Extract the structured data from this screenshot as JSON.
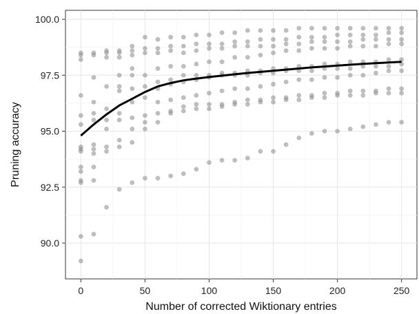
{
  "chart_data": {
    "type": "scatter",
    "title": "",
    "xlabel": "Number of corrected Wiktionary entries",
    "ylabel": "Pruning accuracy",
    "xlim": [
      -12,
      262
    ],
    "ylim": [
      88.4,
      100.4
    ],
    "x_ticks": [
      0,
      50,
      100,
      150,
      200,
      250
    ],
    "x_tick_labels": [
      "0",
      "50",
      "100",
      "150",
      "200",
      "250"
    ],
    "y_ticks": [
      90.0,
      92.5,
      95.0,
      97.5,
      100.0
    ],
    "y_tick_labels": [
      "90.0",
      "92.5",
      "95.0",
      "97.5",
      "100.0"
    ],
    "grid": true,
    "legend": "none",
    "point_color": "#888888",
    "point_opacity": 0.55,
    "line_color": "#000000",
    "series": [
      {
        "kind": "scatter",
        "points": [
          [
            0,
            98.5
          ],
          [
            0,
            98.4
          ],
          [
            0,
            98.2
          ],
          [
            0,
            96.6
          ],
          [
            0,
            95.7
          ],
          [
            0,
            95.3
          ],
          [
            0,
            94.3
          ],
          [
            0,
            94.2
          ],
          [
            0,
            94.1
          ],
          [
            0,
            93.4
          ],
          [
            0,
            93.2
          ],
          [
            0,
            92.8
          ],
          [
            0,
            92.7
          ],
          [
            0,
            90.3
          ],
          [
            0,
            89.2
          ],
          [
            10,
            98.5
          ],
          [
            10,
            98.4
          ],
          [
            10,
            97.4
          ],
          [
            10,
            96.3
          ],
          [
            10,
            95.8
          ],
          [
            10,
            95.5
          ],
          [
            10,
            94.4
          ],
          [
            10,
            94.2
          ],
          [
            10,
            94.0
          ],
          [
            10,
            93.4
          ],
          [
            10,
            92.8
          ],
          [
            10,
            90.4
          ],
          [
            20,
            98.6
          ],
          [
            20,
            98.5
          ],
          [
            20,
            98.3
          ],
          [
            20,
            97.0
          ],
          [
            20,
            96.0
          ],
          [
            20,
            95.5
          ],
          [
            20,
            95.1
          ],
          [
            20,
            94.3
          ],
          [
            20,
            94.1
          ],
          [
            20,
            91.6
          ],
          [
            30,
            98.6
          ],
          [
            30,
            98.5
          ],
          [
            30,
            98.3
          ],
          [
            30,
            97.5
          ],
          [
            30,
            97.0
          ],
          [
            30,
            96.8
          ],
          [
            30,
            95.8
          ],
          [
            30,
            95.5
          ],
          [
            30,
            94.6
          ],
          [
            30,
            94.3
          ],
          [
            30,
            92.4
          ],
          [
            40,
            98.8
          ],
          [
            40,
            98.6
          ],
          [
            40,
            98.4
          ],
          [
            40,
            97.8
          ],
          [
            40,
            97.5
          ],
          [
            40,
            96.9
          ],
          [
            40,
            96.3
          ],
          [
            40,
            95.6
          ],
          [
            40,
            95.1
          ],
          [
            40,
            94.5
          ],
          [
            40,
            92.7
          ],
          [
            50,
            99.2
          ],
          [
            50,
            98.7
          ],
          [
            50,
            98.5
          ],
          [
            50,
            97.5
          ],
          [
            50,
            97.0
          ],
          [
            50,
            96.5
          ],
          [
            50,
            95.7
          ],
          [
            50,
            95.4
          ],
          [
            50,
            95.1
          ],
          [
            50,
            92.9
          ],
          [
            60,
            99.1
          ],
          [
            60,
            98.7
          ],
          [
            60,
            98.5
          ],
          [
            60,
            97.8
          ],
          [
            60,
            97.2
          ],
          [
            60,
            96.9
          ],
          [
            60,
            96.3
          ],
          [
            60,
            95.8
          ],
          [
            60,
            95.4
          ],
          [
            60,
            92.9
          ],
          [
            70,
            99.2
          ],
          [
            70,
            98.8
          ],
          [
            70,
            98.6
          ],
          [
            70,
            97.9
          ],
          [
            70,
            97.3
          ],
          [
            70,
            97.1
          ],
          [
            70,
            96.4
          ],
          [
            70,
            95.9
          ],
          [
            70,
            95.8
          ],
          [
            70,
            93.0
          ],
          [
            80,
            99.2
          ],
          [
            80,
            98.8
          ],
          [
            80,
            98.5
          ],
          [
            80,
            97.9
          ],
          [
            80,
            97.5
          ],
          [
            80,
            97.2
          ],
          [
            80,
            96.5
          ],
          [
            80,
            96.1
          ],
          [
            80,
            95.9
          ],
          [
            80,
            93.1
          ],
          [
            90,
            99.3
          ],
          [
            90,
            98.9
          ],
          [
            90,
            98.6
          ],
          [
            90,
            98.0
          ],
          [
            90,
            97.5
          ],
          [
            90,
            97.3
          ],
          [
            90,
            96.6
          ],
          [
            90,
            96.2
          ],
          [
            90,
            96.0
          ],
          [
            90,
            93.3
          ],
          [
            100,
            99.3
          ],
          [
            100,
            98.9
          ],
          [
            100,
            98.7
          ],
          [
            100,
            98.1
          ],
          [
            100,
            97.5
          ],
          [
            100,
            97.4
          ],
          [
            100,
            96.7
          ],
          [
            100,
            96.2
          ],
          [
            100,
            96.0
          ],
          [
            100,
            93.6
          ],
          [
            110,
            99.4
          ],
          [
            110,
            98.9
          ],
          [
            110,
            98.7
          ],
          [
            110,
            98.1
          ],
          [
            110,
            97.6
          ],
          [
            110,
            97.5
          ],
          [
            110,
            96.8
          ],
          [
            110,
            96.2
          ],
          [
            110,
            96.1
          ],
          [
            110,
            93.7
          ],
          [
            120,
            99.4
          ],
          [
            120,
            99.0
          ],
          [
            120,
            98.8
          ],
          [
            120,
            98.3
          ],
          [
            120,
            97.6
          ],
          [
            120,
            97.5
          ],
          [
            120,
            96.9
          ],
          [
            120,
            96.3
          ],
          [
            120,
            96.2
          ],
          [
            120,
            93.7
          ],
          [
            130,
            99.5
          ],
          [
            130,
            99.0
          ],
          [
            130,
            98.8
          ],
          [
            130,
            98.3
          ],
          [
            130,
            97.7
          ],
          [
            130,
            97.5
          ],
          [
            130,
            96.9
          ],
          [
            130,
            96.4
          ],
          [
            130,
            96.2
          ],
          [
            130,
            93.8
          ],
          [
            140,
            99.5
          ],
          [
            140,
            99.1
          ],
          [
            140,
            98.8
          ],
          [
            140,
            98.4
          ],
          [
            140,
            97.7
          ],
          [
            140,
            97.6
          ],
          [
            140,
            97.0
          ],
          [
            140,
            96.4
          ],
          [
            140,
            96.3
          ],
          [
            140,
            94.1
          ],
          [
            150,
            99.5
          ],
          [
            150,
            99.1
          ],
          [
            150,
            98.8
          ],
          [
            150,
            98.5
          ],
          [
            150,
            97.8
          ],
          [
            150,
            97.6
          ],
          [
            150,
            97.1
          ],
          [
            150,
            96.5
          ],
          [
            150,
            96.3
          ],
          [
            150,
            94.1
          ],
          [
            160,
            99.5
          ],
          [
            160,
            99.1
          ],
          [
            160,
            98.9
          ],
          [
            160,
            98.6
          ],
          [
            160,
            97.8
          ],
          [
            160,
            97.7
          ],
          [
            160,
            97.2
          ],
          [
            160,
            96.5
          ],
          [
            160,
            96.4
          ],
          [
            160,
            94.4
          ],
          [
            170,
            99.6
          ],
          [
            170,
            99.2
          ],
          [
            170,
            98.9
          ],
          [
            170,
            98.6
          ],
          [
            170,
            97.9
          ],
          [
            170,
            97.7
          ],
          [
            170,
            97.3
          ],
          [
            170,
            96.6
          ],
          [
            170,
            96.4
          ],
          [
            170,
            94.7
          ],
          [
            180,
            99.6
          ],
          [
            180,
            99.2
          ],
          [
            180,
            99.0
          ],
          [
            180,
            98.7
          ],
          [
            180,
            97.9
          ],
          [
            180,
            97.7
          ],
          [
            180,
            97.3
          ],
          [
            180,
            96.6
          ],
          [
            180,
            96.5
          ],
          [
            180,
            94.9
          ],
          [
            190,
            99.6
          ],
          [
            190,
            99.2
          ],
          [
            190,
            99.0
          ],
          [
            190,
            98.7
          ],
          [
            190,
            98.0
          ],
          [
            190,
            97.8
          ],
          [
            190,
            97.4
          ],
          [
            190,
            96.7
          ],
          [
            190,
            96.5
          ],
          [
            190,
            95.0
          ],
          [
            200,
            99.6
          ],
          [
            200,
            99.3
          ],
          [
            200,
            99.0
          ],
          [
            200,
            98.7
          ],
          [
            200,
            98.0
          ],
          [
            200,
            97.8
          ],
          [
            200,
            97.4
          ],
          [
            200,
            96.7
          ],
          [
            200,
            96.6
          ],
          [
            200,
            95.0
          ],
          [
            210,
            99.6
          ],
          [
            210,
            99.3
          ],
          [
            210,
            99.0
          ],
          [
            210,
            98.8
          ],
          [
            210,
            98.1
          ],
          [
            210,
            97.8
          ],
          [
            210,
            97.5
          ],
          [
            210,
            96.8
          ],
          [
            210,
            96.6
          ],
          [
            210,
            95.1
          ],
          [
            220,
            99.6
          ],
          [
            220,
            99.3
          ],
          [
            220,
            99.1
          ],
          [
            220,
            98.8
          ],
          [
            220,
            98.1
          ],
          [
            220,
            97.9
          ],
          [
            220,
            97.5
          ],
          [
            220,
            96.8
          ],
          [
            220,
            96.6
          ],
          [
            220,
            95.2
          ],
          [
            230,
            99.6
          ],
          [
            230,
            99.3
          ],
          [
            230,
            99.1
          ],
          [
            230,
            98.8
          ],
          [
            230,
            98.1
          ],
          [
            230,
            97.9
          ],
          [
            230,
            97.6
          ],
          [
            230,
            96.8
          ],
          [
            230,
            96.7
          ],
          [
            230,
            95.3
          ],
          [
            240,
            99.6
          ],
          [
            240,
            99.4
          ],
          [
            240,
            99.1
          ],
          [
            240,
            98.9
          ],
          [
            240,
            98.2
          ],
          [
            240,
            97.9
          ],
          [
            240,
            97.7
          ],
          [
            240,
            96.9
          ],
          [
            240,
            96.7
          ],
          [
            240,
            95.4
          ],
          [
            250,
            99.6
          ],
          [
            250,
            99.4
          ],
          [
            250,
            99.1
          ],
          [
            250,
            98.9
          ],
          [
            250,
            98.2
          ],
          [
            250,
            98.0
          ],
          [
            250,
            97.7
          ],
          [
            250,
            96.9
          ],
          [
            250,
            96.7
          ],
          [
            250,
            95.4
          ]
        ]
      },
      {
        "kind": "line",
        "x": [
          0,
          10,
          20,
          30,
          40,
          50,
          60,
          70,
          80,
          90,
          100,
          110,
          120,
          130,
          140,
          150,
          160,
          170,
          180,
          190,
          200,
          210,
          220,
          230,
          240,
          250
        ],
        "y": [
          94.8,
          95.3,
          95.75,
          96.15,
          96.45,
          96.75,
          97.0,
          97.15,
          97.27,
          97.35,
          97.42,
          97.48,
          97.54,
          97.6,
          97.65,
          97.7,
          97.75,
          97.8,
          97.85,
          97.89,
          97.93,
          97.97,
          98.01,
          98.04,
          98.07,
          98.1
        ]
      }
    ]
  }
}
